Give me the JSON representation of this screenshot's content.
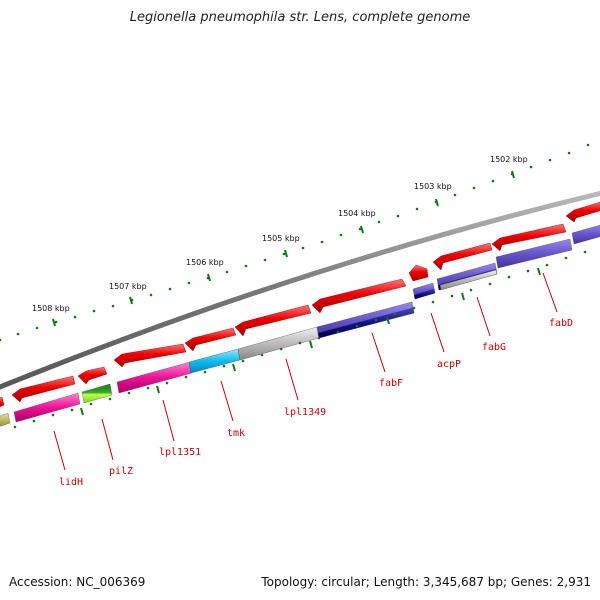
{
  "title": "Legionella pneumophila str. Lens, complete genome",
  "footer": {
    "accession": "Accession: NC_006369",
    "topology": "Topology: circular; Length: 3,345,687 bp; Genes: 2,931"
  },
  "scale_labels": [
    "1502 kbp",
    "1503 kbp",
    "1504 kbp",
    "1505 kbp",
    "1506 kbp",
    "1507 kbp",
    "1508 kbp"
  ],
  "gene_labels": [
    "fabD",
    "fabG",
    "acpP",
    "fabF",
    "lpl1349",
    "tmk",
    "lpl1351",
    "pilZ",
    "lidH"
  ],
  "colors": {
    "backbone": "#7a7a7a",
    "cds_forward": "#ee0000",
    "label": "#cc0000",
    "tick": "#117711",
    "magenta": "#ee1199",
    "cyan": "#11bbee",
    "gray": "#bbbbbb",
    "slate": "#6655cc",
    "navy": "#111188",
    "green": "#33aa22",
    "khaki": "#bbb866"
  }
}
